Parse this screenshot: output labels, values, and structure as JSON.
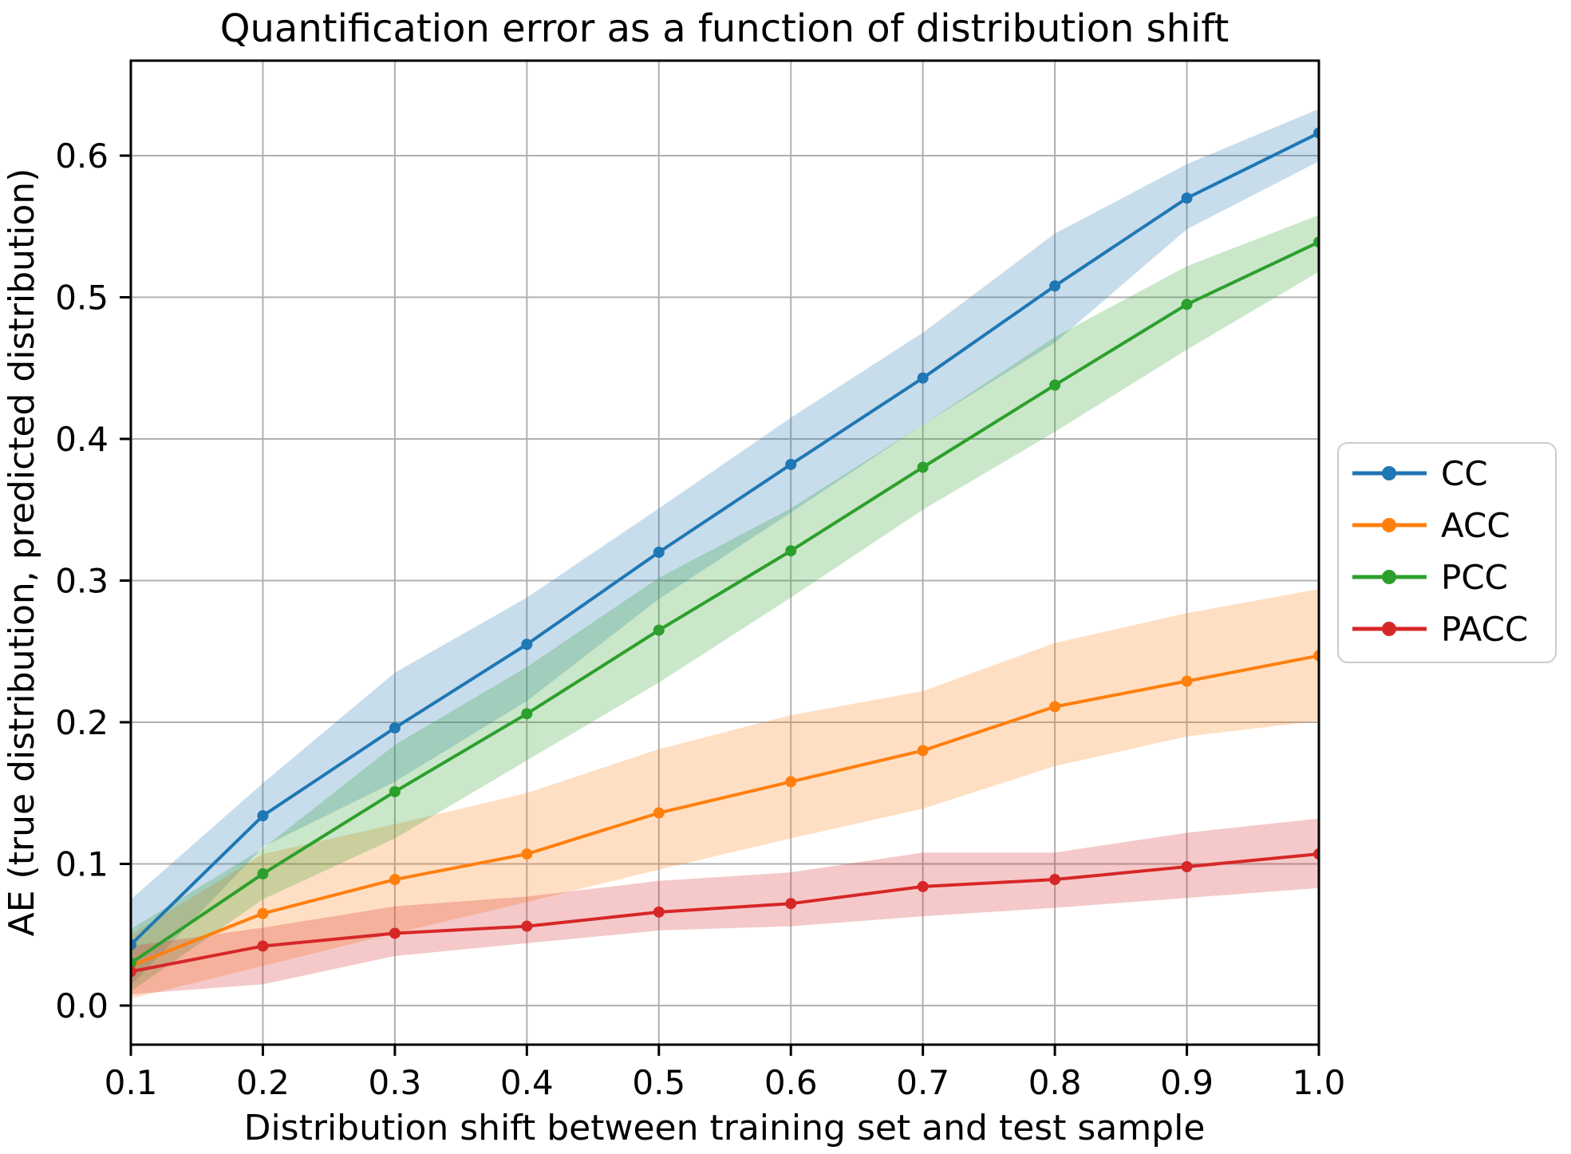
{
  "figure": {
    "background": "#ffffff",
    "text_color": "#000000",
    "grid_color": "#b0b0b0",
    "spine_color": "#000000",
    "legend_border_color": "#cccccc"
  },
  "chart_data": {
    "type": "line",
    "title": "Quantification error as a function of distribution shift",
    "xlabel": "Distribution shift between training set and test sample",
    "ylabel": "AE (true distribution, predicted distribution)",
    "x": [
      0.1,
      0.2,
      0.3,
      0.4,
      0.5,
      0.6,
      0.7,
      0.8,
      0.9,
      1.0
    ],
    "x_ticks": [
      "0.1",
      "0.2",
      "0.3",
      "0.4",
      "0.5",
      "0.6",
      "0.7",
      "0.8",
      "0.9",
      "1.0"
    ],
    "y_ticks": [
      "0.0",
      "0.1",
      "0.2",
      "0.3",
      "0.4",
      "0.5",
      "0.6"
    ],
    "xlim": [
      0.1,
      1.0
    ],
    "ylim": [
      -0.028,
      0.667
    ],
    "grid": true,
    "legend_position": "right-outside",
    "band_opacity": 0.25,
    "series": [
      {
        "name": "CC",
        "color": "#1f77b4",
        "values": [
          0.043,
          0.134,
          0.196,
          0.255,
          0.32,
          0.382,
          0.443,
          0.508,
          0.57,
          0.616
        ],
        "band_lower": [
          0.014,
          0.112,
          0.158,
          0.215,
          0.287,
          0.348,
          0.41,
          0.468,
          0.548,
          0.596
        ],
        "band_upper": [
          0.075,
          0.157,
          0.235,
          0.288,
          0.351,
          0.415,
          0.475,
          0.545,
          0.594,
          0.633
        ]
      },
      {
        "name": "ACC",
        "color": "#ff7f0e",
        "values": [
          0.028,
          0.065,
          0.089,
          0.107,
          0.136,
          0.158,
          0.18,
          0.211,
          0.229,
          0.247
        ],
        "band_lower": [
          0.005,
          0.028,
          0.051,
          0.073,
          0.096,
          0.118,
          0.139,
          0.169,
          0.19,
          0.201
        ],
        "band_upper": [
          0.05,
          0.107,
          0.128,
          0.15,
          0.181,
          0.205,
          0.222,
          0.256,
          0.277,
          0.294
        ]
      },
      {
        "name": "PCC",
        "color": "#2ca02c",
        "values": [
          0.03,
          0.093,
          0.151,
          0.206,
          0.265,
          0.321,
          0.38,
          0.438,
          0.495,
          0.539
        ],
        "band_lower": [
          0.01,
          0.075,
          0.118,
          0.173,
          0.228,
          0.288,
          0.35,
          0.405,
          0.463,
          0.518
        ],
        "band_upper": [
          0.054,
          0.111,
          0.184,
          0.239,
          0.302,
          0.351,
          0.41,
          0.472,
          0.522,
          0.558
        ]
      },
      {
        "name": "PACC",
        "color": "#d62728",
        "values": [
          0.024,
          0.042,
          0.051,
          0.056,
          0.066,
          0.072,
          0.084,
          0.089,
          0.098,
          0.107
        ],
        "band_lower": [
          0.008,
          0.015,
          0.035,
          0.044,
          0.053,
          0.056,
          0.063,
          0.069,
          0.076,
          0.083
        ],
        "band_upper": [
          0.042,
          0.055,
          0.07,
          0.077,
          0.088,
          0.094,
          0.108,
          0.108,
          0.122,
          0.132
        ]
      }
    ]
  }
}
